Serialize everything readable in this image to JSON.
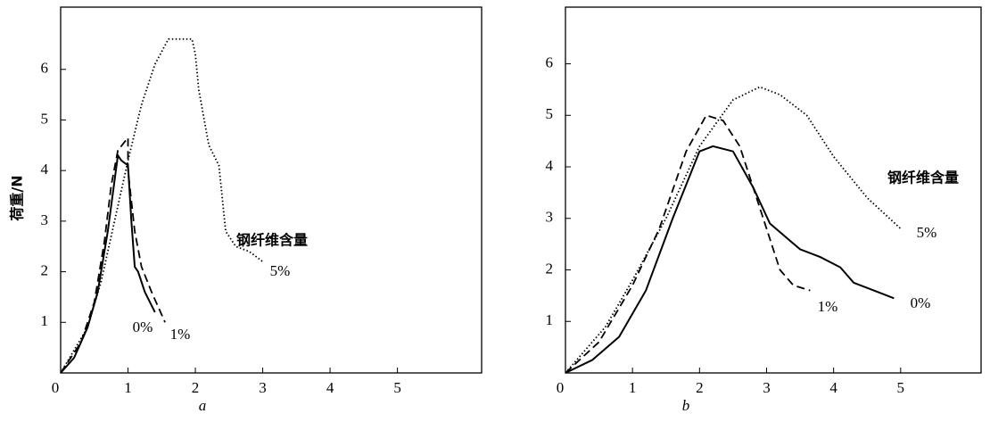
{
  "chart_data": [
    {
      "type": "line",
      "x_label": "a",
      "y_label": "荷重/N",
      "legend_title": "钢纤维含量",
      "xlim": [
        0,
        6.25
      ],
      "ylim": [
        0,
        7.23
      ],
      "xticks": [
        0,
        1,
        2,
        3,
        4,
        5
      ],
      "yticks": [
        1,
        2,
        3,
        4,
        5,
        6
      ],
      "series": [
        {
          "name": "0%",
          "color": "#000000",
          "dash": "solid",
          "x": [
            0,
            0.2,
            0.4,
            0.55,
            0.7,
            0.8,
            0.85,
            0.9,
            1.0,
            1.05,
            1.1,
            1.15,
            1.25,
            1.4
          ],
          "values": [
            0,
            0.3,
            0.9,
            1.6,
            2.8,
            3.8,
            4.3,
            4.2,
            4.1,
            3.0,
            2.1,
            2.0,
            1.6,
            1.2
          ]
        },
        {
          "name": "1%",
          "color": "#000000",
          "dash": "dashed",
          "x": [
            0,
            0.3,
            0.5,
            0.65,
            0.75,
            0.85,
            1.0,
            1.0,
            1.1,
            1.2,
            1.35,
            1.55
          ],
          "values": [
            0,
            0.6,
            1.4,
            2.6,
            3.7,
            4.4,
            4.65,
            4.0,
            2.8,
            2.1,
            1.6,
            1.0
          ]
        },
        {
          "name": "5%",
          "color": "#000000",
          "dash": "dotted",
          "x": [
            0,
            0.4,
            0.6,
            0.8,
            1.0,
            1.2,
            1.4,
            1.6,
            1.95,
            2.0,
            2.05,
            2.2,
            2.35,
            2.45,
            2.6,
            2.8,
            3.0
          ],
          "values": [
            0,
            0.9,
            1.8,
            3.0,
            4.2,
            5.3,
            6.1,
            6.6,
            6.6,
            6.3,
            5.6,
            4.5,
            4.1,
            2.8,
            2.5,
            2.4,
            2.2
          ]
        }
      ]
    },
    {
      "type": "line",
      "x_label": "b",
      "legend_title": "钢纤维含量",
      "xlim": [
        0,
        6.2
      ],
      "ylim": [
        0,
        7.1
      ],
      "xticks": [
        0,
        1,
        2,
        3,
        4,
        5
      ],
      "yticks": [
        1,
        2,
        3,
        4,
        5,
        6
      ],
      "series": [
        {
          "name": "0%",
          "color": "#000000",
          "dash": "solid",
          "x": [
            0,
            0.4,
            0.8,
            1.2,
            1.6,
            2.0,
            2.2,
            2.5,
            2.8,
            3.05,
            3.5,
            3.8,
            4.1,
            4.3,
            4.6,
            4.9
          ],
          "values": [
            0,
            0.25,
            0.7,
            1.6,
            3.0,
            4.3,
            4.4,
            4.3,
            3.6,
            2.9,
            2.4,
            2.25,
            2.05,
            1.75,
            1.6,
            1.45
          ]
        },
        {
          "name": "1%",
          "color": "#000000",
          "dash": "dashed",
          "x": [
            0,
            0.5,
            1.0,
            1.4,
            1.8,
            2.1,
            2.35,
            2.6,
            2.9,
            3.2,
            3.4,
            3.65
          ],
          "values": [
            0,
            0.6,
            1.7,
            2.8,
            4.3,
            5.0,
            4.9,
            4.4,
            3.2,
            2.0,
            1.7,
            1.6
          ]
        },
        {
          "name": "5%",
          "color": "#000000",
          "dash": "dotted",
          "x": [
            0,
            0.6,
            1.0,
            1.5,
            2.0,
            2.5,
            2.9,
            3.2,
            3.6,
            4.0,
            4.5,
            5.0
          ],
          "values": [
            0,
            0.9,
            1.8,
            3.0,
            4.4,
            5.3,
            5.55,
            5.4,
            5.0,
            4.2,
            3.4,
            2.8
          ]
        }
      ]
    }
  ]
}
